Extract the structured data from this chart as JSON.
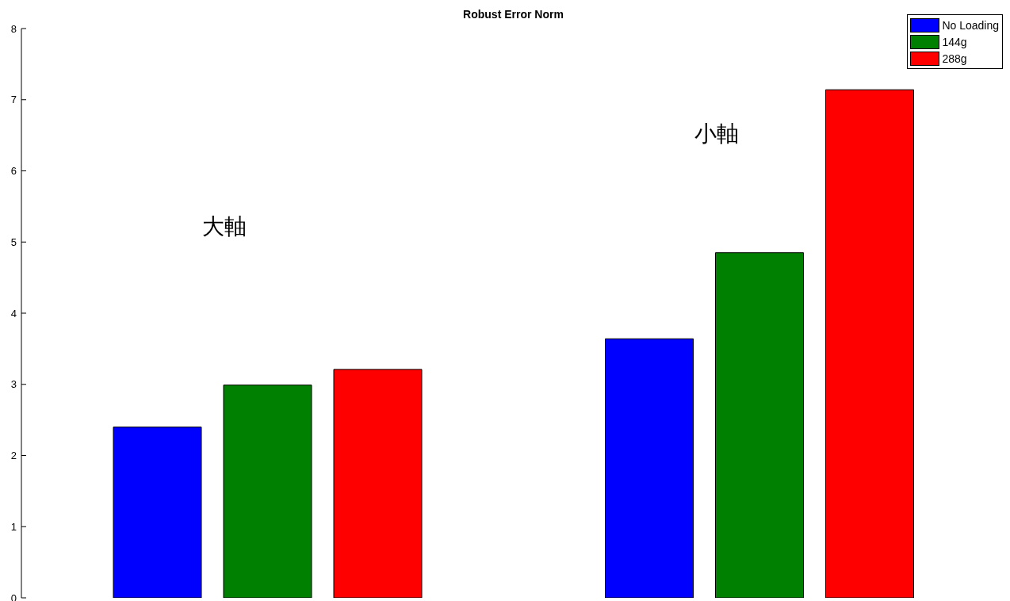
{
  "chart_data": {
    "type": "bar",
    "title": "Robust Error Norm",
    "categories": [
      null,
      null
    ],
    "series": [
      {
        "name": "No Loading",
        "color": "#0000ff",
        "values": [
          2.4,
          3.64
        ]
      },
      {
        "name": "144g",
        "color": "#008000",
        "values": [
          2.99,
          4.85
        ]
      },
      {
        "name": "288g",
        "color": "#ff0000",
        "values": [
          3.21,
          7.14
        ]
      }
    ],
    "ylim": [
      0,
      8
    ],
    "yticks": [
      0,
      1,
      2,
      3,
      4,
      5,
      6,
      7,
      8
    ],
    "legend": "top right",
    "annotations": [
      "大軸",
      "小軸"
    ]
  }
}
